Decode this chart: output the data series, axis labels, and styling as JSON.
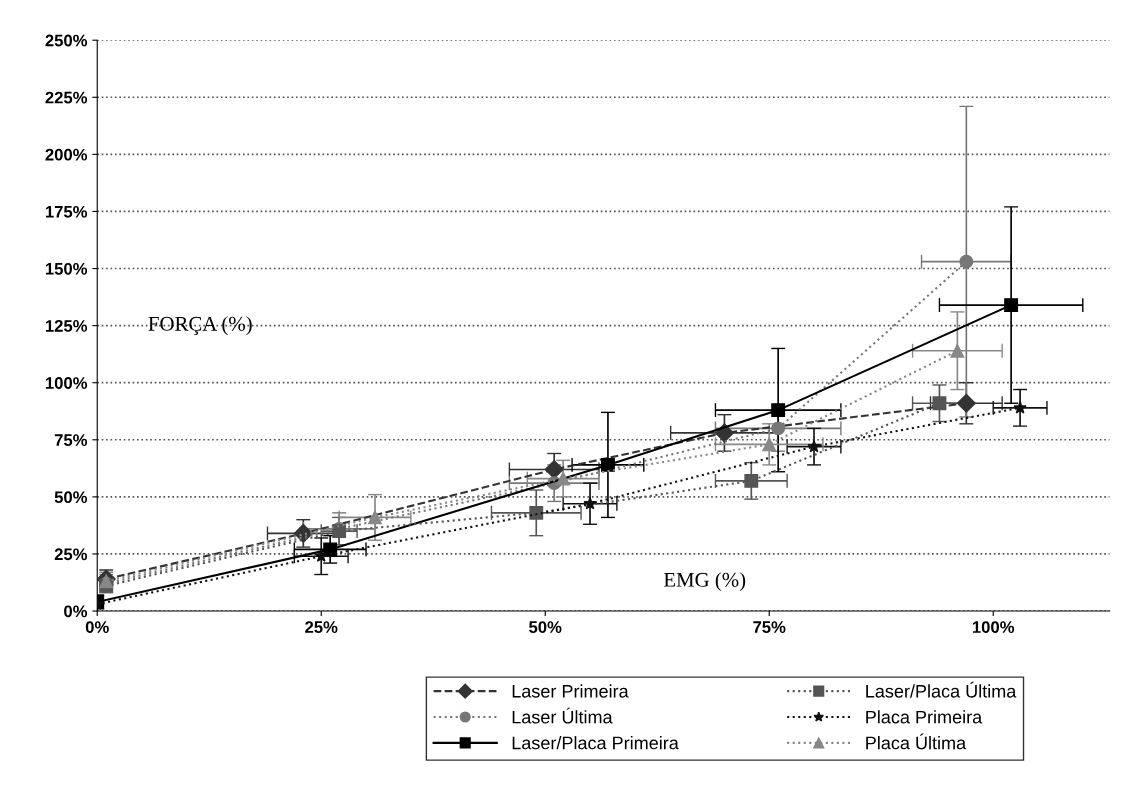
{
  "chart_data": {
    "type": "line",
    "xlabel": "EMG (%)",
    "ylabel": "FORÇA (%)",
    "xlim": [
      0,
      113
    ],
    "ylim": [
      0,
      250
    ],
    "xticks": [
      {
        "value": 0,
        "label": "0%"
      },
      {
        "value": 25,
        "label": "25%"
      },
      {
        "value": 50,
        "label": "50%"
      },
      {
        "value": 75,
        "label": "75%"
      },
      {
        "value": 100,
        "label": "100%"
      }
    ],
    "yticks": [
      {
        "value": 0,
        "label": "0%"
      },
      {
        "value": 25,
        "label": "25%"
      },
      {
        "value": 50,
        "label": "50%"
      },
      {
        "value": 75,
        "label": "75%"
      },
      {
        "value": 100,
        "label": "100%"
      },
      {
        "value": 125,
        "label": "125%"
      },
      {
        "value": 150,
        "label": "150%"
      },
      {
        "value": 175,
        "label": "175%"
      },
      {
        "value": 200,
        "label": "200%"
      },
      {
        "value": 225,
        "label": "225%"
      },
      {
        "value": 250,
        "label": "250%"
      }
    ],
    "grid": "y",
    "legend": "bottom",
    "series": [
      {
        "name": "Laser Primeira",
        "color": "#333333",
        "marker": "diamond",
        "line_style": "dashed",
        "x": [
          1,
          23,
          51,
          70,
          97
        ],
        "values": [
          14,
          34,
          62,
          78,
          91
        ],
        "errors": [
          4,
          6,
          7,
          8,
          9
        ],
        "xerrors": [
          null,
          4,
          5,
          6,
          4
        ]
      },
      {
        "name": "Laser Última",
        "color": "#777777",
        "marker": "circle",
        "line_style": "dotted",
        "x": [
          1,
          27,
          51,
          76,
          97
        ],
        "values": [
          12,
          36,
          56,
          80,
          153
        ],
        "errors": [
          4,
          7,
          8,
          10,
          68
        ],
        "xerrors": [
          null,
          4,
          5,
          7,
          5
        ]
      },
      {
        "name": "Laser/Placa Primeira",
        "color": "#000000",
        "marker": "square",
        "line_style": "solid",
        "x": [
          0,
          26,
          57,
          76,
          102
        ],
        "values": [
          4,
          27,
          64,
          88,
          134
        ],
        "errors": [
          3,
          6,
          23,
          27,
          43
        ],
        "xerrors": [
          null,
          4,
          4,
          7,
          8
        ]
      },
      {
        "name": "Laser/Placa Última",
        "color": "#555555",
        "marker": "square",
        "line_style": "dotted",
        "x": [
          1,
          27,
          49,
          73,
          94
        ],
        "values": [
          11,
          35,
          43,
          57,
          91
        ],
        "errors": [
          null,
          6,
          10,
          8,
          8
        ],
        "xerrors": [
          null,
          2,
          5,
          4,
          3
        ]
      },
      {
        "name": "Placa Primeira",
        "color": "#111111",
        "marker": "star",
        "line_style": "dotted",
        "x": [
          0,
          25,
          55,
          80,
          103
        ],
        "values": [
          3,
          24,
          47,
          72,
          89
        ],
        "errors": [
          null,
          8,
          9,
          8,
          8
        ],
        "xerrors": [
          null,
          3,
          3,
          3,
          3
        ]
      },
      {
        "name": "Placa Última",
        "color": "#888888",
        "marker": "triangle",
        "line_style": "dotted",
        "x": [
          1,
          31,
          52,
          75,
          96
        ],
        "values": [
          13,
          41,
          58,
          73,
          114
        ],
        "errors": [
          4,
          10,
          8,
          9,
          17
        ],
        "xerrors": [
          null,
          4,
          4,
          6,
          5
        ]
      }
    ]
  }
}
